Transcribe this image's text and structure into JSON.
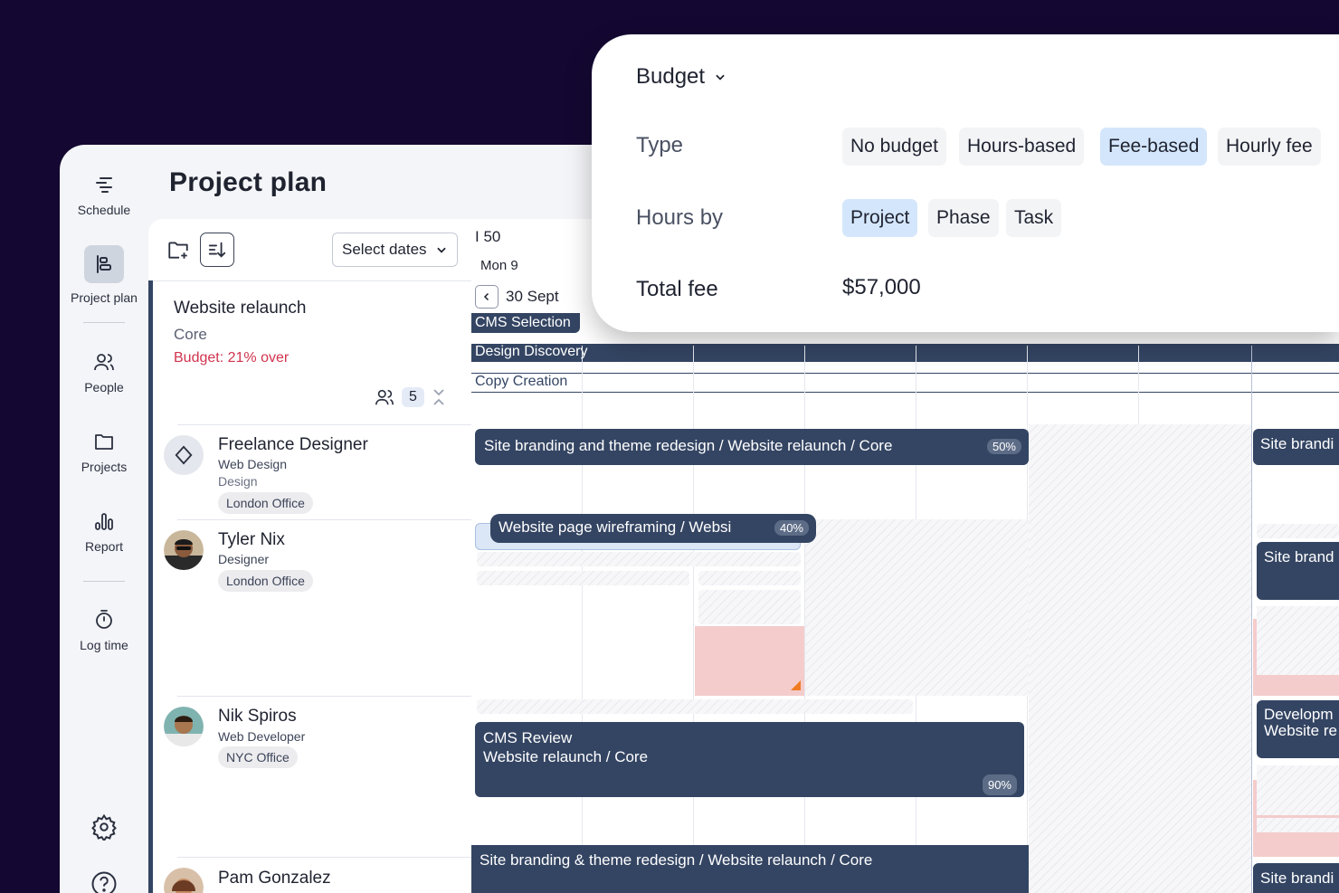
{
  "sidebar": {
    "items": [
      {
        "label": "Schedule",
        "icon": "schedule-icon"
      },
      {
        "label": "Project plan",
        "icon": "project-plan-icon",
        "active": true
      },
      {
        "label": "People",
        "icon": "people-icon"
      },
      {
        "label": "Projects",
        "icon": "folder-icon"
      },
      {
        "label": "Report",
        "icon": "report-icon"
      },
      {
        "label": "Log time",
        "icon": "timer-icon"
      }
    ],
    "bottom_icons": [
      "gear-icon",
      "help-icon"
    ]
  },
  "page": {
    "title": "Project plan"
  },
  "panel": {
    "select_dates": "Select dates",
    "project": {
      "name": "Website relaunch",
      "client": "Core",
      "budget": "Budget: 21% over",
      "people_count": "5"
    },
    "people": [
      {
        "name": "Freelance Designer",
        "role": "Web Design",
        "dept": "Design",
        "office": "London Office"
      },
      {
        "name": "Tyler Nix",
        "role": "Designer",
        "office": "London Office"
      },
      {
        "name": "Nik Spiros",
        "role": "Web Developer",
        "office": "NYC Office"
      },
      {
        "name": "Pam Gonzalez"
      }
    ]
  },
  "timeline": {
    "week_number": "50",
    "day_label": "Mon 9",
    "date_label": "30 Sept",
    "phases": [
      "CMS Selection",
      "Design Discovery",
      "Copy Creation"
    ],
    "tasks": [
      {
        "title": "Site branding and theme redesign / Website relaunch / Core",
        "pct": "50%"
      },
      {
        "title": "Website page wireframing / Websi",
        "pct": "40%"
      },
      {
        "title": "CMS Review",
        "subtitle": "Website relaunch / Core",
        "pct": "90%"
      },
      {
        "title": "Site branding & theme redesign / Website relaunch / Core"
      }
    ],
    "clipped": [
      "Site brandi",
      "Site brand",
      "Developm",
      "Website re",
      "Site brandi"
    ]
  },
  "budget_popup": {
    "title": "Budget",
    "type_label": "Type",
    "type_options": [
      "No budget",
      "Hours-based",
      "Fee-based",
      "Hourly fee"
    ],
    "type_selected": "Fee-based",
    "hours_label": "Hours by",
    "hours_options": [
      "Project",
      "Phase",
      "Task"
    ],
    "hours_selected": "Project",
    "fee_label": "Total fee",
    "fee_value": "$57,000"
  },
  "colors": {
    "background": "#140832",
    "bar": "#344563",
    "accent_selected": "#d4e6fb",
    "over_budget": "#d1344f"
  }
}
